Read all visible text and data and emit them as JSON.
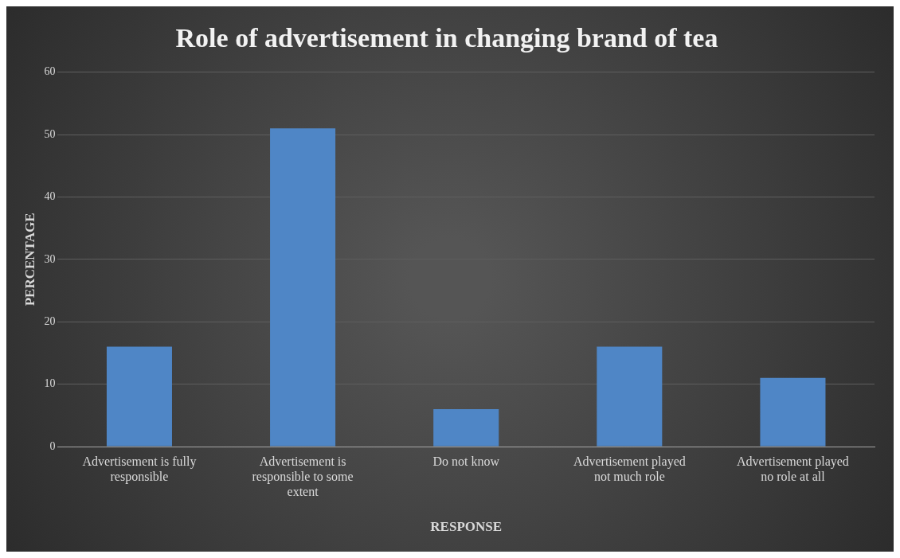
{
  "chart_data": {
    "type": "bar",
    "title": "Role of advertisement in changing brand of tea",
    "xlabel": "RESPONSE",
    "ylabel": "PERCENTAGE",
    "categories": [
      "Advertisement is fully responsible",
      "Advertisement is responsible to some extent",
      "Do not know",
      "Advertisement played not much role",
      "Advertisement played no role at all"
    ],
    "values": [
      16,
      51,
      6,
      16,
      11
    ],
    "color": "#4f86c6",
    "ylim": [
      0,
      60
    ],
    "yticks": [
      0,
      10,
      20,
      30,
      40,
      50,
      60
    ],
    "grid": "y",
    "legend": false
  }
}
